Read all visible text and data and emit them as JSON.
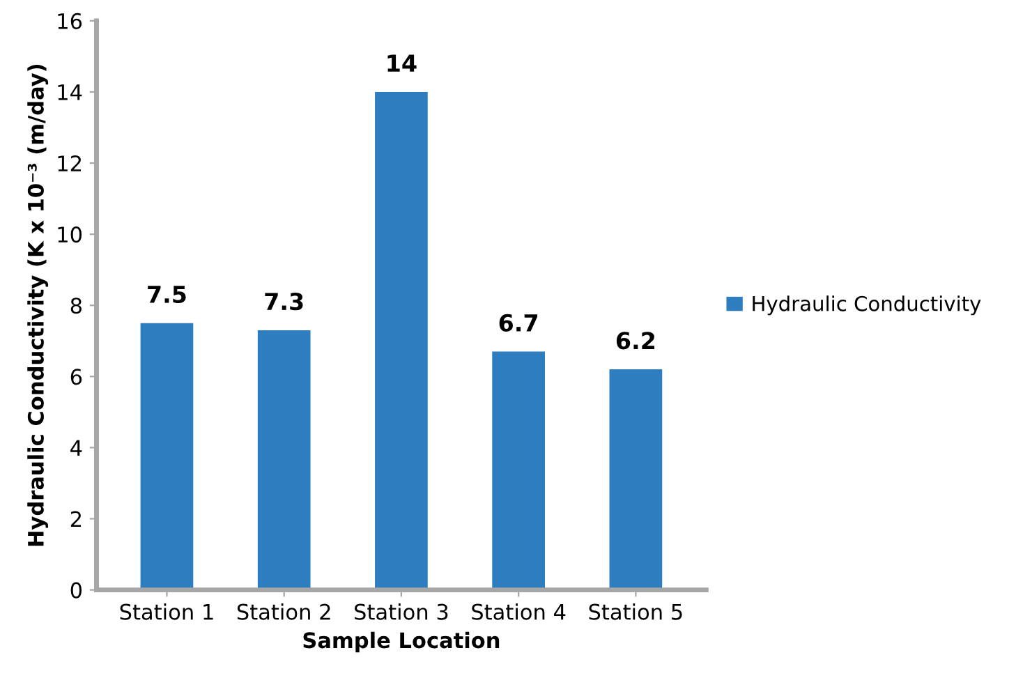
{
  "chart_data": {
    "type": "bar",
    "xlabel": "Sample Location",
    "ylabel": "Hydraulic Conductivity (K x 10⁻³ (m/day)",
    "categories": [
      "Station 1",
      "Station 2",
      "Station 3",
      "Station 4",
      "Station 5"
    ],
    "series": [
      {
        "name": "Hydraulic Conductivity",
        "color": "#2e7ebf",
        "values": [
          7.5,
          7.3,
          14,
          6.7,
          6.2
        ]
      }
    ],
    "ylim": [
      0,
      16
    ],
    "yticks": [
      0,
      2,
      4,
      6,
      8,
      10,
      12,
      14,
      16
    ],
    "grid": false,
    "legend": "right",
    "data_labels": true
  }
}
